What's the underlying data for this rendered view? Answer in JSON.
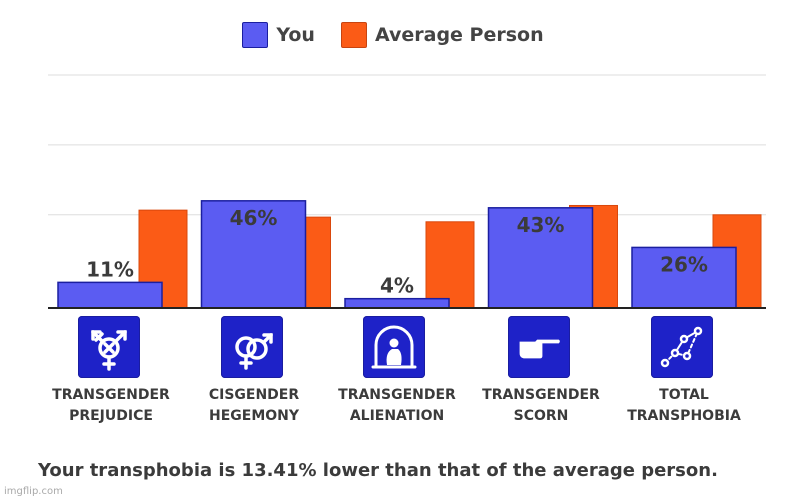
{
  "chart_data": {
    "type": "bar",
    "categories": [
      "TRANSGENDER\nPREJUDICE",
      "CISGENDER\nHEGEMONY",
      "TRANSGENDER\nALIENATION",
      "TRANSGENDER\nSCORN",
      "TOTAL\nTRANSPHOBIA"
    ],
    "series": [
      {
        "name": "You",
        "values": [
          11,
          46,
          4,
          43,
          26
        ],
        "labels": [
          "11%",
          "46%",
          "4%",
          "43%",
          "26%"
        ],
        "color": "#5b5cf2"
      },
      {
        "name": "Average Person",
        "values": [
          42,
          39,
          37,
          44,
          40
        ],
        "color": "#fb5b16"
      }
    ],
    "ylim": [
      0,
      100
    ],
    "grid": true,
    "legend": "top-center"
  },
  "icons": [
    "transgender-symbol-icon",
    "interlocked-male-female-icon",
    "person-in-bubble-icon",
    "pointing-hand-icon",
    "line-graph-icon"
  ],
  "summary": "Your transphobia is 13.41% lower than that of the average person.",
  "watermark": "imgflip.com"
}
